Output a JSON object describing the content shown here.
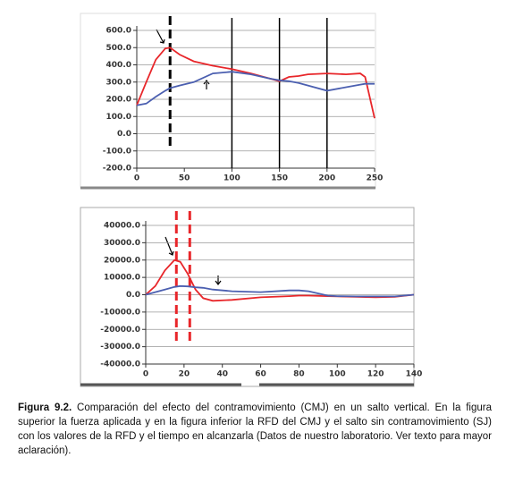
{
  "chart_data": [
    {
      "type": "line",
      "x": [
        0,
        10,
        20,
        30,
        35,
        45,
        60,
        80,
        100,
        120,
        140,
        150,
        160,
        170,
        180,
        200,
        220,
        235,
        240,
        250
      ],
      "series": [
        {
          "color": "#e8262a",
          "values": [
            165,
            300,
            430,
            495,
            500,
            460,
            420,
            395,
            375,
            350,
            320,
            305,
            330,
            335,
            345,
            350,
            345,
            350,
            330,
            90
          ]
        },
        {
          "color": "#4b5fb0",
          "values": [
            165,
            175,
            215,
            250,
            265,
            280,
            300,
            350,
            360,
            345,
            320,
            310,
            305,
            295,
            280,
            250,
            270,
            285,
            290,
            290
          ]
        }
      ],
      "xlim": [
        0,
        250
      ],
      "xticks": [
        0,
        50,
        100,
        150,
        200,
        250
      ],
      "ylim": [
        -200,
        600
      ],
      "yticks": [
        {
          "value": 600,
          "label": "600.0"
        },
        {
          "value": 500,
          "label": "500.0"
        },
        {
          "value": 400,
          "label": "400.0"
        },
        {
          "value": 300,
          "label": "300.0"
        },
        {
          "value": 200,
          "label": "200.0"
        },
        {
          "value": 100,
          "label": "100.0"
        },
        {
          "value": 0,
          "label": "0.0"
        },
        {
          "value": -100,
          "label": "-100.0"
        },
        {
          "value": -200,
          "label": "-200.0"
        }
      ],
      "grid": true,
      "vlines": [
        100,
        150,
        200
      ],
      "marker_lines": [
        35
      ],
      "marker_color": "#000000"
    },
    {
      "type": "line",
      "x": [
        0,
        5,
        10,
        15,
        18,
        22,
        26,
        30,
        35,
        45,
        60,
        75,
        80,
        85,
        95,
        100,
        110,
        120,
        130,
        140
      ],
      "series": [
        {
          "color": "#e8262a",
          "values": [
            0,
            5000,
            14000,
            20000,
            19000,
            12000,
            3000,
            -2000,
            -3500,
            -3000,
            -1500,
            -800,
            -500,
            -500,
            -800,
            -1000,
            -1200,
            -1500,
            -1200,
            0
          ]
        },
        {
          "color": "#4b5fb0",
          "values": [
            0,
            1500,
            3000,
            4500,
            5000,
            4800,
            4300,
            4000,
            3000,
            2000,
            1500,
            2500,
            2500,
            2000,
            -500,
            -800,
            -1000,
            -1000,
            -1000,
            0
          ]
        }
      ],
      "xlim": [
        0,
        140
      ],
      "xticks": [
        0,
        20,
        40,
        60,
        80,
        100,
        120,
        140
      ],
      "ylim": [
        -40000,
        40000
      ],
      "yticks": [
        {
          "value": 40000,
          "label": "40000.0"
        },
        {
          "value": 30000,
          "label": "30000.0"
        },
        {
          "value": 20000,
          "label": "20000.0"
        },
        {
          "value": 10000,
          "label": "10000.0"
        },
        {
          "value": 0,
          "label": "0.0"
        },
        {
          "value": -10000,
          "label": "-10000.0"
        },
        {
          "value": -20000,
          "label": "-20000.0"
        },
        {
          "value": -30000,
          "label": "-30000.0"
        },
        {
          "value": -40000,
          "label": "-40000.0"
        }
      ],
      "grid": true,
      "vlines": [],
      "marker_lines": [
        16,
        23
      ],
      "marker_color": "#e8262a"
    }
  ],
  "caption": {
    "label": "Figura 9.2.",
    "text": "Comparación del efecto del contramovimiento (CMJ) en un salto vertical. En la figura superior la fuerza aplicada y en la figura inferior la RFD del CMJ y el salto sin contramovimiento (SJ) con los valores de la RFD y el tiempo en alcanzarla (Datos de nuestro laboratorio. Ver texto para mayor aclaración)."
  }
}
